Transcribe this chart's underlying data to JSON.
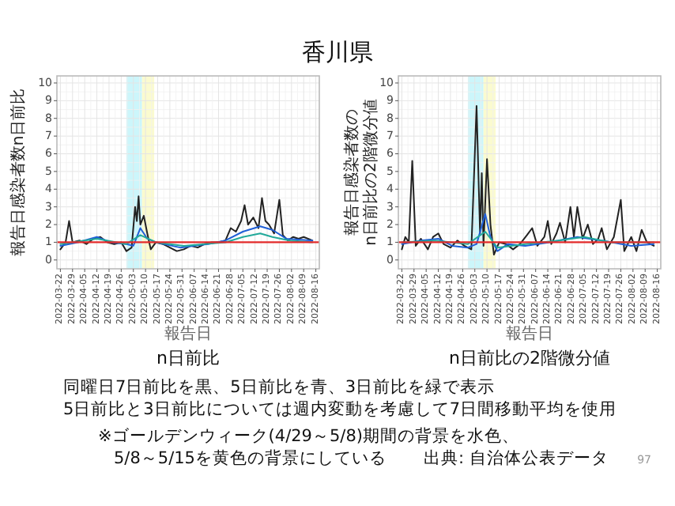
{
  "chart_data": [
    {
      "type": "line",
      "title": "香川県",
      "xlabel": "報告日",
      "ylabel": "報告日感染者数n日前比",
      "annotations": [
        "n日前比",
        "同曜日7日前比を黒、5日前比を青、3日前比を緑で表示",
        "5日前比と3日前比については週内変動を考慮して7日間移動平均を使用",
        "※ゴールデンウィーク(4/29～5/8)期間の背景を水色、",
        "5/8～5/15を黄色の背景にしている",
        "出典: 自治体公表データ",
        "97"
      ],
      "xlim": [
        "2022-03-20",
        "2022-08-18"
      ],
      "xticks": [
        "2022-03-22",
        "2022-03-29",
        "2022-04-05",
        "2022-04-12",
        "2022-04-19",
        "2022-04-26",
        "2022-05-03",
        "2022-05-10",
        "2022-05-17",
        "2022-05-24",
        "2022-05-31",
        "2022-06-07",
        "2022-06-14",
        "2022-06-21",
        "2022-06-28",
        "2022-07-05",
        "2022-07-12",
        "2022-07-19",
        "2022-07-26",
        "2022-08-02",
        "2022-08-09",
        "2022-08-16"
      ],
      "ylim": [
        -0.5,
        10.4
      ],
      "yticks": [
        0,
        1,
        2,
        3,
        4,
        5,
        6,
        7,
        8,
        9,
        10
      ],
      "grid": true,
      "bands": [
        {
          "axis": "x",
          "from": "2022-04-29",
          "to": "2022-05-08",
          "color": "#ccf6fb"
        },
        {
          "axis": "x",
          "from": "2022-05-08",
          "to": "2022-05-15",
          "color": "#fbfbcf"
        }
      ],
      "ref_lines": [
        {
          "axis": "y",
          "value": 1,
          "color": "#e32b2b"
        }
      ],
      "series": [
        {
          "color": "#222222",
          "x": [
            "2022-03-22",
            "2022-03-25",
            "2022-03-27",
            "2022-03-29",
            "2022-04-02",
            "2022-04-06",
            "2022-04-10",
            "2022-04-14",
            "2022-04-18",
            "2022-04-22",
            "2022-04-26",
            "2022-04-29",
            "2022-05-02",
            "2022-05-04",
            "2022-05-05",
            "2022-05-06",
            "2022-05-07",
            "2022-05-09",
            "2022-05-11",
            "2022-05-13",
            "2022-05-16",
            "2022-05-20",
            "2022-05-24",
            "2022-05-28",
            "2022-06-01",
            "2022-06-05",
            "2022-06-09",
            "2022-06-13",
            "2022-06-17",
            "2022-06-21",
            "2022-06-25",
            "2022-06-28",
            "2022-07-01",
            "2022-07-04",
            "2022-07-06",
            "2022-07-08",
            "2022-07-11",
            "2022-07-14",
            "2022-07-16",
            "2022-07-18",
            "2022-07-20",
            "2022-07-23",
            "2022-07-26",
            "2022-07-28",
            "2022-07-31",
            "2022-08-03",
            "2022-08-06",
            "2022-08-09",
            "2022-08-14"
          ],
          "values": [
            0.6,
            1.0,
            2.2,
            1.0,
            1.1,
            0.9,
            1.2,
            1.3,
            1.0,
            0.9,
            1.0,
            0.5,
            0.7,
            3.0,
            2.2,
            3.6,
            2.0,
            2.5,
            1.5,
            0.6,
            1.0,
            0.9,
            0.7,
            0.5,
            0.6,
            0.8,
            0.7,
            0.9,
            1.0,
            1.0,
            1.1,
            1.8,
            1.6,
            2.2,
            3.1,
            2.0,
            2.4,
            1.8,
            3.5,
            2.2,
            2.0,
            1.5,
            3.4,
            1.4,
            1.1,
            1.3,
            1.2,
            1.3,
            1.1
          ]
        },
        {
          "color": "#1f5fd6",
          "x": [
            "2022-03-22",
            "2022-04-01",
            "2022-04-12",
            "2022-04-20",
            "2022-04-29",
            "2022-05-03",
            "2022-05-07",
            "2022-05-11",
            "2022-05-16",
            "2022-05-30",
            "2022-06-15",
            "2022-06-25",
            "2022-07-05",
            "2022-07-15",
            "2022-07-22",
            "2022-07-30",
            "2022-08-14"
          ],
          "values": [
            0.8,
            1.0,
            1.3,
            1.0,
            0.9,
            0.8,
            1.8,
            1.2,
            1.0,
            0.7,
            0.9,
            1.1,
            1.6,
            1.9,
            1.7,
            1.2,
            1.1
          ]
        },
        {
          "color": "#22a99a",
          "x": [
            "2022-03-22",
            "2022-04-12",
            "2022-04-29",
            "2022-05-07",
            "2022-05-16",
            "2022-06-01",
            "2022-06-25",
            "2022-07-05",
            "2022-07-15",
            "2022-07-22",
            "2022-08-01",
            "2022-08-14"
          ],
          "values": [
            0.9,
            1.2,
            0.9,
            1.4,
            1.0,
            0.8,
            1.0,
            1.3,
            1.5,
            1.3,
            1.1,
            1.0
          ]
        }
      ]
    },
    {
      "type": "line",
      "xlabel": "報告日",
      "ylabel": "報告日感染者数のn日前比の2階微分値",
      "annotations": [
        "n日前比の2階微分値"
      ],
      "xlim": [
        "2022-03-20",
        "2022-08-18"
      ],
      "xticks": [
        "2022-03-22",
        "2022-03-29",
        "2022-04-05",
        "2022-04-12",
        "2022-04-19",
        "2022-04-26",
        "2022-05-03",
        "2022-05-10",
        "2022-05-17",
        "2022-05-24",
        "2022-05-31",
        "2022-06-07",
        "2022-06-14",
        "2022-06-21",
        "2022-06-28",
        "2022-07-05",
        "2022-07-12",
        "2022-07-19",
        "2022-07-26",
        "2022-08-02",
        "2022-08-09",
        "2022-08-16"
      ],
      "ylim": [
        -0.5,
        10.4
      ],
      "yticks": [
        0,
        1,
        2,
        3,
        4,
        5,
        6,
        7,
        8,
        9,
        10
      ],
      "grid": true,
      "bands": [
        {
          "axis": "x",
          "from": "2022-04-29",
          "to": "2022-05-08",
          "color": "#ccf6fb"
        },
        {
          "axis": "x",
          "from": "2022-05-08",
          "to": "2022-05-15",
          "color": "#fbfbcf"
        }
      ],
      "ref_lines": [
        {
          "axis": "y",
          "value": 1,
          "color": "#e32b2b"
        }
      ],
      "series": [
        {
          "color": "#222222",
          "x": [
            "2022-03-22",
            "2022-03-24",
            "2022-03-26",
            "2022-03-28",
            "2022-03-30",
            "2022-04-02",
            "2022-04-06",
            "2022-04-09",
            "2022-04-12",
            "2022-04-15",
            "2022-04-19",
            "2022-04-23",
            "2022-04-27",
            "2022-05-01",
            "2022-05-04",
            "2022-05-06",
            "2022-05-07",
            "2022-05-08",
            "2022-05-10",
            "2022-05-12",
            "2022-05-14",
            "2022-05-17",
            "2022-05-21",
            "2022-05-25",
            "2022-05-29",
            "2022-06-02",
            "2022-06-05",
            "2022-06-08",
            "2022-06-12",
            "2022-06-14",
            "2022-06-16",
            "2022-06-19",
            "2022-06-21",
            "2022-06-24",
            "2022-06-27",
            "2022-06-29",
            "2022-07-01",
            "2022-07-04",
            "2022-07-07",
            "2022-07-10",
            "2022-07-13",
            "2022-07-15",
            "2022-07-18",
            "2022-07-22",
            "2022-07-26",
            "2022-07-28",
            "2022-08-01",
            "2022-08-04",
            "2022-08-07",
            "2022-08-10",
            "2022-08-14"
          ],
          "values": [
            0.6,
            1.3,
            1.0,
            5.6,
            0.8,
            1.2,
            0.6,
            1.3,
            1.5,
            0.9,
            0.7,
            1.1,
            0.8,
            0.6,
            8.7,
            1.5,
            4.9,
            0.8,
            5.7,
            2.0,
            0.3,
            1.0,
            0.9,
            0.6,
            0.9,
            1.4,
            1.8,
            0.8,
            1.3,
            2.2,
            0.9,
            1.5,
            2.1,
            1.0,
            3.0,
            1.3,
            3.0,
            1.2,
            2.0,
            0.9,
            1.2,
            1.8,
            0.6,
            1.3,
            3.4,
            0.5,
            1.3,
            0.5,
            1.7,
            1.0,
            0.8
          ]
        },
        {
          "color": "#1f5fd6",
          "x": [
            "2022-03-22",
            "2022-04-02",
            "2022-04-12",
            "2022-04-20",
            "2022-04-29",
            "2022-05-04",
            "2022-05-09",
            "2022-05-12",
            "2022-05-16",
            "2022-05-22",
            "2022-06-01",
            "2022-06-15",
            "2022-07-01",
            "2022-07-15",
            "2022-08-01",
            "2022-08-14"
          ],
          "values": [
            0.9,
            1.1,
            1.2,
            0.8,
            0.7,
            0.9,
            2.6,
            1.3,
            0.5,
            0.9,
            0.8,
            1.0,
            1.3,
            1.1,
            0.8,
            0.9
          ]
        },
        {
          "color": "#22a99a",
          "x": [
            "2022-03-22",
            "2022-04-10",
            "2022-04-29",
            "2022-05-09",
            "2022-05-16",
            "2022-06-01",
            "2022-06-20",
            "2022-07-05",
            "2022-07-20",
            "2022-08-14"
          ],
          "values": [
            1.0,
            1.1,
            0.9,
            1.6,
            0.7,
            0.9,
            1.1,
            1.3,
            1.0,
            1.0
          ]
        }
      ]
    }
  ]
}
